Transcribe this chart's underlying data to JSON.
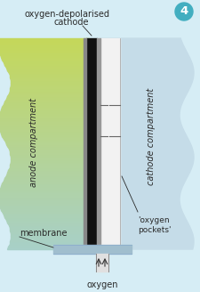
{
  "bg_color": "#d6edf5",
  "anode_color_top": "#c5d85a",
  "anode_color_bottom": "#a8d0c8",
  "cathode_color": "#c5dce8",
  "black_layer_color": "#111111",
  "gray_layer_color": "#888888",
  "light_gray_color": "#cccccc",
  "white_pocket_color": "#f2f2f2",
  "membrane_color": "#a0bece",
  "labels": {
    "title_label": "oxygen-depolarised\ncathode",
    "anode_label": "anode compartment",
    "cathode_label": "cathode compartment",
    "membrane_label": "membrane",
    "oxygen_label": "oxygen",
    "pockets_label": "'oxygen\npockets'"
  },
  "font_color": "#2a2a2a",
  "font_size": 7.0,
  "badge_color": "#42aec0",
  "badge_label": "4",
  "fig_width": 2.25,
  "fig_height": 3.28,
  "dpi": 100
}
